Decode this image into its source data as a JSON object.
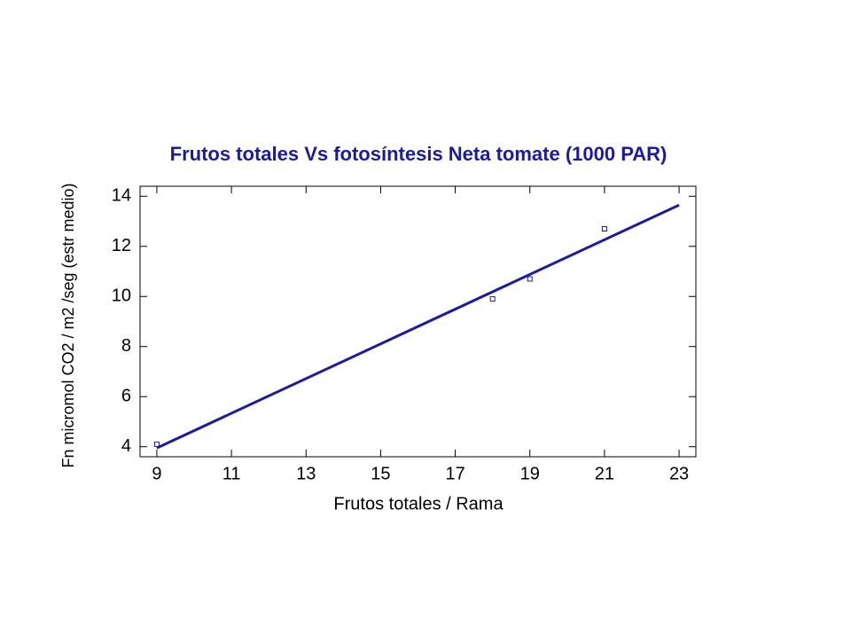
{
  "chart_data": {
    "type": "scatter",
    "title": "Frutos totales Vs fotosíntesis Neta tomate (1000 PAR)",
    "x_label": "Frutos totales / Rama",
    "y_label": "Fn micromol CO2 / m2 /seg (estr medio)",
    "series": [
      {
        "type": "scatter",
        "color": "#1a1aa8",
        "x": [
          9,
          18,
          19,
          21
        ],
        "values": [
          4.1,
          9.9,
          10.7,
          12.7
        ]
      },
      {
        "type": "line",
        "color": "#1a1aa8",
        "x": [
          9,
          23
        ],
        "values": [
          3.95,
          13.65
        ]
      }
    ],
    "xlim": [
      8.55,
      23.45
    ],
    "ylim": [
      3.6,
      14.4
    ],
    "xticks": [
      9,
      11,
      13,
      15,
      17,
      19,
      21,
      23
    ],
    "yticks": [
      4,
      6,
      8,
      10,
      12,
      14
    ],
    "grid": false
  }
}
